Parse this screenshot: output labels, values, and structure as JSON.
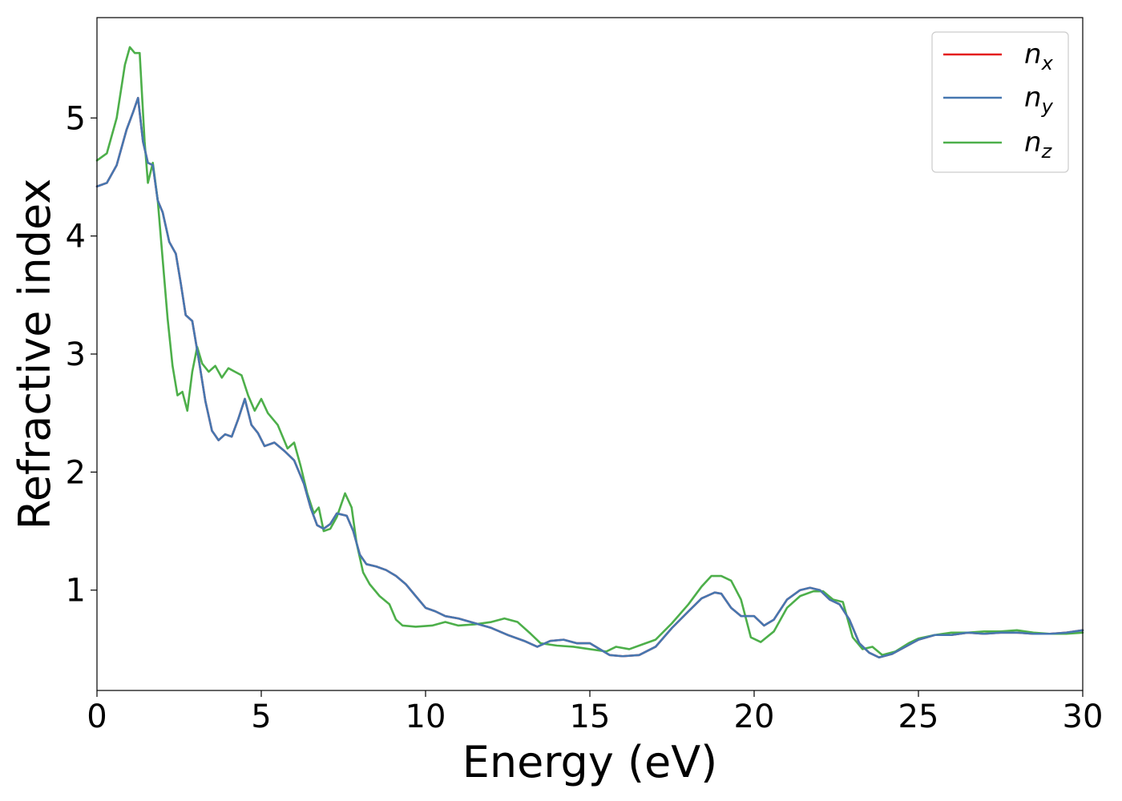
{
  "chart_data": {
    "type": "line",
    "xlabel": "Energy (eV)",
    "ylabel": "Refractive index",
    "xlim": [
      0,
      30
    ],
    "ylim": [
      0.15,
      5.85
    ],
    "xticks": [
      0,
      5,
      10,
      15,
      20,
      25,
      30
    ],
    "xtick_labels": [
      "0",
      "5",
      "10",
      "15",
      "20",
      "25",
      "30"
    ],
    "yticks": [
      1,
      2,
      3,
      4,
      5
    ],
    "ytick_labels": [
      "1",
      "2",
      "3",
      "4",
      "5"
    ],
    "grid": false,
    "legend_position": "top-right",
    "series": [
      {
        "name": "n_x",
        "label_main": "n",
        "label_sub": "x",
        "color": "#e41a1c",
        "points": [
          [
            0,
            4.42
          ],
          [
            0.3,
            4.45
          ],
          [
            0.6,
            4.6
          ],
          [
            0.9,
            4.9
          ],
          [
            1.1,
            5.05
          ],
          [
            1.25,
            5.17
          ],
          [
            1.4,
            4.8
          ],
          [
            1.55,
            4.62
          ],
          [
            1.7,
            4.6
          ],
          [
            1.85,
            4.3
          ],
          [
            2.0,
            4.2
          ],
          [
            2.2,
            3.95
          ],
          [
            2.4,
            3.85
          ],
          [
            2.55,
            3.6
          ],
          [
            2.7,
            3.33
          ],
          [
            2.9,
            3.28
          ],
          [
            3.1,
            2.95
          ],
          [
            3.3,
            2.6
          ],
          [
            3.5,
            2.35
          ],
          [
            3.7,
            2.27
          ],
          [
            3.9,
            2.32
          ],
          [
            4.1,
            2.3
          ],
          [
            4.3,
            2.45
          ],
          [
            4.5,
            2.62
          ],
          [
            4.7,
            2.4
          ],
          [
            4.9,
            2.33
          ],
          [
            5.1,
            2.22
          ],
          [
            5.4,
            2.25
          ],
          [
            5.7,
            2.18
          ],
          [
            6.0,
            2.1
          ],
          [
            6.3,
            1.9
          ],
          [
            6.5,
            1.7
          ],
          [
            6.7,
            1.55
          ],
          [
            6.9,
            1.52
          ],
          [
            7.1,
            1.56
          ],
          [
            7.3,
            1.65
          ],
          [
            7.6,
            1.63
          ],
          [
            7.8,
            1.5
          ],
          [
            8.0,
            1.3
          ],
          [
            8.2,
            1.22
          ],
          [
            8.5,
            1.2
          ],
          [
            8.8,
            1.17
          ],
          [
            9.1,
            1.12
          ],
          [
            9.4,
            1.05
          ],
          [
            9.7,
            0.95
          ],
          [
            10.0,
            0.85
          ],
          [
            10.3,
            0.82
          ],
          [
            10.6,
            0.78
          ],
          [
            11.0,
            0.76
          ],
          [
            11.5,
            0.72
          ],
          [
            12.0,
            0.68
          ],
          [
            12.5,
            0.62
          ],
          [
            13.0,
            0.57
          ],
          [
            13.4,
            0.52
          ],
          [
            13.8,
            0.57
          ],
          [
            14.2,
            0.58
          ],
          [
            14.6,
            0.55
          ],
          [
            15.0,
            0.55
          ],
          [
            15.3,
            0.5
          ],
          [
            15.6,
            0.45
          ],
          [
            16.0,
            0.44
          ],
          [
            16.5,
            0.45
          ],
          [
            17.0,
            0.52
          ],
          [
            17.5,
            0.68
          ],
          [
            18.0,
            0.82
          ],
          [
            18.4,
            0.93
          ],
          [
            18.8,
            0.98
          ],
          [
            19.0,
            0.97
          ],
          [
            19.3,
            0.85
          ],
          [
            19.6,
            0.78
          ],
          [
            20.0,
            0.78
          ],
          [
            20.3,
            0.7
          ],
          [
            20.6,
            0.75
          ],
          [
            21.0,
            0.92
          ],
          [
            21.4,
            1.0
          ],
          [
            21.7,
            1.02
          ],
          [
            22.0,
            1.0
          ],
          [
            22.3,
            0.92
          ],
          [
            22.6,
            0.88
          ],
          [
            22.9,
            0.75
          ],
          [
            23.2,
            0.55
          ],
          [
            23.5,
            0.47
          ],
          [
            23.8,
            0.43
          ],
          [
            24.2,
            0.46
          ],
          [
            24.6,
            0.52
          ],
          [
            25.0,
            0.58
          ],
          [
            25.5,
            0.62
          ],
          [
            26.0,
            0.62
          ],
          [
            26.5,
            0.64
          ],
          [
            27.0,
            0.63
          ],
          [
            27.5,
            0.64
          ],
          [
            28.0,
            0.64
          ],
          [
            28.5,
            0.63
          ],
          [
            29.0,
            0.63
          ],
          [
            29.5,
            0.64
          ],
          [
            30.0,
            0.66
          ]
        ]
      },
      {
        "name": "n_y",
        "label_main": "n",
        "label_sub": "y",
        "color": "#4677b0",
        "points": [
          [
            0,
            4.42
          ],
          [
            0.3,
            4.45
          ],
          [
            0.6,
            4.6
          ],
          [
            0.9,
            4.9
          ],
          [
            1.1,
            5.05
          ],
          [
            1.25,
            5.17
          ],
          [
            1.4,
            4.8
          ],
          [
            1.55,
            4.62
          ],
          [
            1.7,
            4.6
          ],
          [
            1.85,
            4.3
          ],
          [
            2.0,
            4.2
          ],
          [
            2.2,
            3.95
          ],
          [
            2.4,
            3.85
          ],
          [
            2.55,
            3.6
          ],
          [
            2.7,
            3.33
          ],
          [
            2.9,
            3.28
          ],
          [
            3.1,
            2.95
          ],
          [
            3.3,
            2.6
          ],
          [
            3.5,
            2.35
          ],
          [
            3.7,
            2.27
          ],
          [
            3.9,
            2.32
          ],
          [
            4.1,
            2.3
          ],
          [
            4.3,
            2.45
          ],
          [
            4.5,
            2.62
          ],
          [
            4.7,
            2.4
          ],
          [
            4.9,
            2.33
          ],
          [
            5.1,
            2.22
          ],
          [
            5.4,
            2.25
          ],
          [
            5.7,
            2.18
          ],
          [
            6.0,
            2.1
          ],
          [
            6.3,
            1.9
          ],
          [
            6.5,
            1.7
          ],
          [
            6.7,
            1.55
          ],
          [
            6.9,
            1.52
          ],
          [
            7.1,
            1.56
          ],
          [
            7.3,
            1.65
          ],
          [
            7.6,
            1.63
          ],
          [
            7.8,
            1.5
          ],
          [
            8.0,
            1.3
          ],
          [
            8.2,
            1.22
          ],
          [
            8.5,
            1.2
          ],
          [
            8.8,
            1.17
          ],
          [
            9.1,
            1.12
          ],
          [
            9.4,
            1.05
          ],
          [
            9.7,
            0.95
          ],
          [
            10.0,
            0.85
          ],
          [
            10.3,
            0.82
          ],
          [
            10.6,
            0.78
          ],
          [
            11.0,
            0.76
          ],
          [
            11.5,
            0.72
          ],
          [
            12.0,
            0.68
          ],
          [
            12.5,
            0.62
          ],
          [
            13.0,
            0.57
          ],
          [
            13.4,
            0.52
          ],
          [
            13.8,
            0.57
          ],
          [
            14.2,
            0.58
          ],
          [
            14.6,
            0.55
          ],
          [
            15.0,
            0.55
          ],
          [
            15.3,
            0.5
          ],
          [
            15.6,
            0.45
          ],
          [
            16.0,
            0.44
          ],
          [
            16.5,
            0.45
          ],
          [
            17.0,
            0.52
          ],
          [
            17.5,
            0.68
          ],
          [
            18.0,
            0.82
          ],
          [
            18.4,
            0.93
          ],
          [
            18.8,
            0.98
          ],
          [
            19.0,
            0.97
          ],
          [
            19.3,
            0.85
          ],
          [
            19.6,
            0.78
          ],
          [
            20.0,
            0.78
          ],
          [
            20.3,
            0.7
          ],
          [
            20.6,
            0.75
          ],
          [
            21.0,
            0.92
          ],
          [
            21.4,
            1.0
          ],
          [
            21.7,
            1.02
          ],
          [
            22.0,
            1.0
          ],
          [
            22.3,
            0.92
          ],
          [
            22.6,
            0.88
          ],
          [
            22.9,
            0.75
          ],
          [
            23.2,
            0.55
          ],
          [
            23.5,
            0.47
          ],
          [
            23.8,
            0.43
          ],
          [
            24.2,
            0.46
          ],
          [
            24.6,
            0.52
          ],
          [
            25.0,
            0.58
          ],
          [
            25.5,
            0.62
          ],
          [
            26.0,
            0.62
          ],
          [
            26.5,
            0.64
          ],
          [
            27.0,
            0.63
          ],
          [
            27.5,
            0.64
          ],
          [
            28.0,
            0.64
          ],
          [
            28.5,
            0.63
          ],
          [
            29.0,
            0.63
          ],
          [
            29.5,
            0.64
          ],
          [
            30.0,
            0.66
          ]
        ]
      },
      {
        "name": "n_z",
        "label_main": "n",
        "label_sub": "z",
        "color": "#4daf4a",
        "points": [
          [
            0,
            4.64
          ],
          [
            0.3,
            4.7
          ],
          [
            0.6,
            5.0
          ],
          [
            0.85,
            5.45
          ],
          [
            1.0,
            5.6
          ],
          [
            1.15,
            5.55
          ],
          [
            1.3,
            5.55
          ],
          [
            1.45,
            4.8
          ],
          [
            1.55,
            4.45
          ],
          [
            1.7,
            4.62
          ],
          [
            1.85,
            4.3
          ],
          [
            2.0,
            3.8
          ],
          [
            2.15,
            3.3
          ],
          [
            2.3,
            2.9
          ],
          [
            2.45,
            2.65
          ],
          [
            2.6,
            2.68
          ],
          [
            2.75,
            2.52
          ],
          [
            2.9,
            2.85
          ],
          [
            3.05,
            3.06
          ],
          [
            3.2,
            2.92
          ],
          [
            3.4,
            2.85
          ],
          [
            3.6,
            2.9
          ],
          [
            3.8,
            2.8
          ],
          [
            4.0,
            2.88
          ],
          [
            4.2,
            2.85
          ],
          [
            4.4,
            2.82
          ],
          [
            4.6,
            2.65
          ],
          [
            4.8,
            2.52
          ],
          [
            5.0,
            2.62
          ],
          [
            5.2,
            2.5
          ],
          [
            5.5,
            2.4
          ],
          [
            5.8,
            2.2
          ],
          [
            6.0,
            2.25
          ],
          [
            6.2,
            2.05
          ],
          [
            6.4,
            1.82
          ],
          [
            6.6,
            1.65
          ],
          [
            6.75,
            1.7
          ],
          [
            6.9,
            1.5
          ],
          [
            7.1,
            1.52
          ],
          [
            7.3,
            1.62
          ],
          [
            7.55,
            1.82
          ],
          [
            7.75,
            1.7
          ],
          [
            7.9,
            1.4
          ],
          [
            8.1,
            1.15
          ],
          [
            8.3,
            1.05
          ],
          [
            8.6,
            0.95
          ],
          [
            8.9,
            0.88
          ],
          [
            9.1,
            0.75
          ],
          [
            9.3,
            0.7
          ],
          [
            9.7,
            0.69
          ],
          [
            10.2,
            0.7
          ],
          [
            10.6,
            0.73
          ],
          [
            11.0,
            0.7
          ],
          [
            11.5,
            0.71
          ],
          [
            12.0,
            0.73
          ],
          [
            12.4,
            0.76
          ],
          [
            12.8,
            0.73
          ],
          [
            13.2,
            0.63
          ],
          [
            13.5,
            0.55
          ],
          [
            14.0,
            0.53
          ],
          [
            14.5,
            0.52
          ],
          [
            15.0,
            0.5
          ],
          [
            15.5,
            0.48
          ],
          [
            15.8,
            0.52
          ],
          [
            16.2,
            0.5
          ],
          [
            16.6,
            0.54
          ],
          [
            17.0,
            0.58
          ],
          [
            17.5,
            0.72
          ],
          [
            18.0,
            0.88
          ],
          [
            18.4,
            1.03
          ],
          [
            18.7,
            1.12
          ],
          [
            19.0,
            1.12
          ],
          [
            19.3,
            1.08
          ],
          [
            19.6,
            0.92
          ],
          [
            19.9,
            0.6
          ],
          [
            20.2,
            0.56
          ],
          [
            20.6,
            0.65
          ],
          [
            21.0,
            0.85
          ],
          [
            21.4,
            0.95
          ],
          [
            21.8,
            0.99
          ],
          [
            22.1,
            0.99
          ],
          [
            22.4,
            0.92
          ],
          [
            22.7,
            0.9
          ],
          [
            23.0,
            0.6
          ],
          [
            23.3,
            0.5
          ],
          [
            23.6,
            0.52
          ],
          [
            23.9,
            0.45
          ],
          [
            24.3,
            0.48
          ],
          [
            24.7,
            0.55
          ],
          [
            25.0,
            0.59
          ],
          [
            25.5,
            0.62
          ],
          [
            26.0,
            0.64
          ],
          [
            26.5,
            0.64
          ],
          [
            27.0,
            0.65
          ],
          [
            27.5,
            0.65
          ],
          [
            28.0,
            0.66
          ],
          [
            28.5,
            0.64
          ],
          [
            29.0,
            0.63
          ],
          [
            29.5,
            0.63
          ],
          [
            30.0,
            0.64
          ]
        ]
      }
    ]
  }
}
